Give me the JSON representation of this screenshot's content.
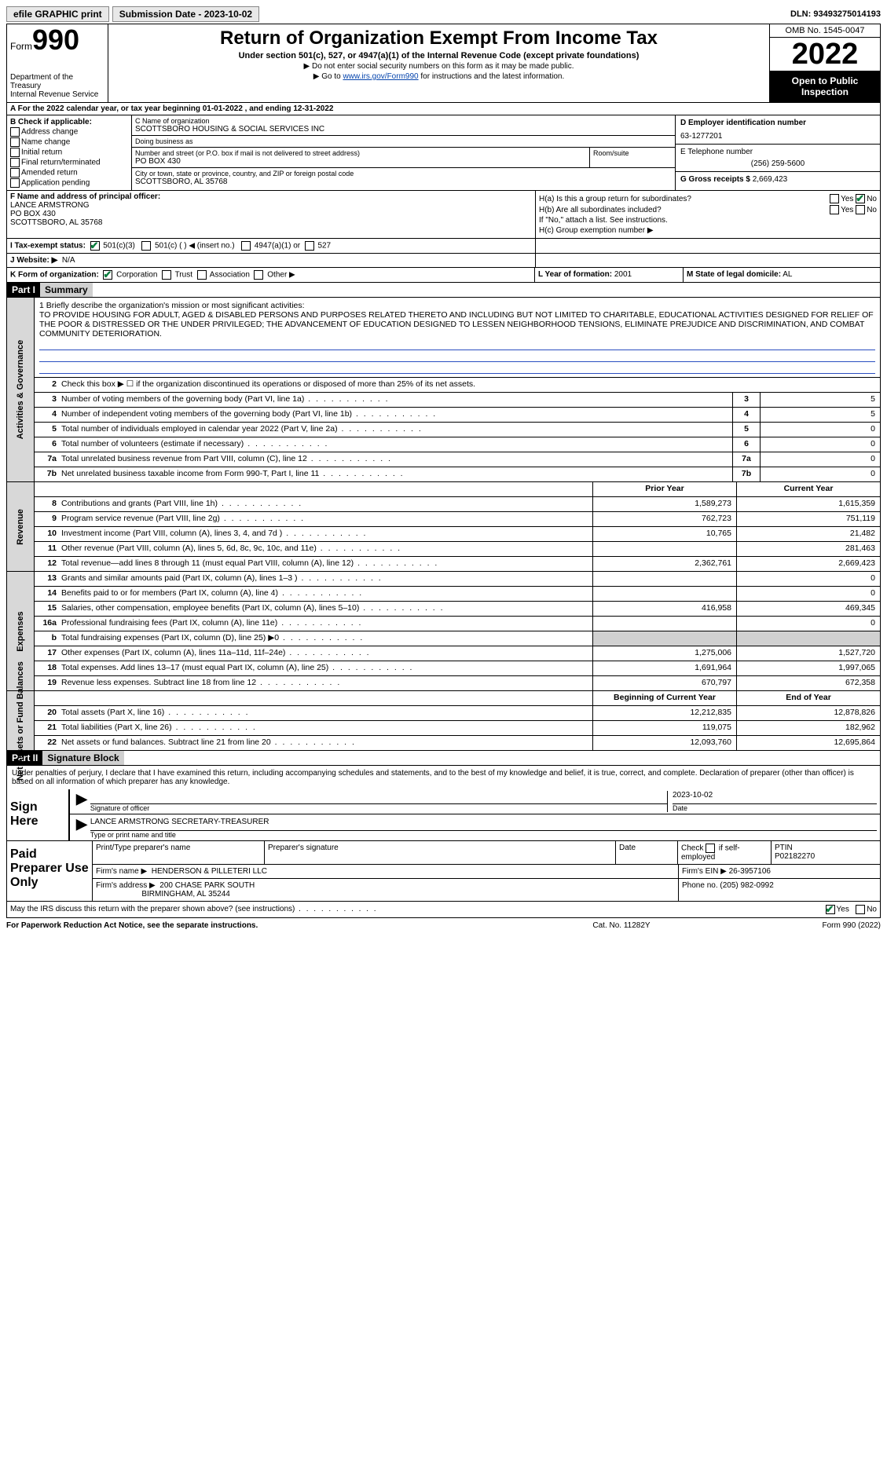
{
  "topbar": {
    "efile": "efile GRAPHIC print",
    "submission": "Submission Date - 2023-10-02",
    "dln": "DLN: 93493275014193"
  },
  "header": {
    "form_word": "Form",
    "form_num": "990",
    "dept": "Department of the Treasury",
    "irs": "Internal Revenue Service",
    "title": "Return of Organization Exempt From Income Tax",
    "sub": "Under section 501(c), 527, or 4947(a)(1) of the Internal Revenue Code (except private foundations)",
    "note1": "▶ Do not enter social security numbers on this form as it may be made public.",
    "note2_pre": "▶ Go to ",
    "note2_link": "www.irs.gov/Form990",
    "note2_post": " for instructions and the latest information.",
    "omb": "OMB No. 1545-0047",
    "year": "2022",
    "open": "Open to Public Inspection"
  },
  "rowA": "A For the 2022 calendar year, or tax year beginning 01-01-2022    , and ending 12-31-2022",
  "colB": {
    "hdr": "B Check if applicable:",
    "items": [
      "Address change",
      "Name change",
      "Initial return",
      "Final return/terminated",
      "Amended return",
      "Application pending"
    ]
  },
  "colC": {
    "name_hint": "C Name of organization",
    "name": "SCOTTSBORO HOUSING & SOCIAL SERVICES INC",
    "dba_hint": "Doing business as",
    "dba": "",
    "street_hint": "Number and street (or P.O. box if mail is not delivered to street address)",
    "street": "PO BOX 430",
    "room_hint": "Room/suite",
    "city_hint": "City or town, state or province, country, and ZIP or foreign postal code",
    "city": "SCOTTSBORO, AL  35768"
  },
  "colD": {
    "ein_hint": "D Employer identification number",
    "ein": "63-1277201",
    "phone_hint": "E Telephone number",
    "phone": "(256) 259-5600",
    "gross_hint": "G Gross receipts $",
    "gross": "2,669,423"
  },
  "colF": {
    "hint": "F  Name and address of principal officer:",
    "name": "LANCE ARMSTRONG",
    "addr1": "PO BOX 430",
    "addr2": "SCOTTSBORO, AL  35768"
  },
  "colH": {
    "ha": "H(a)  Is this a group return for subordinates?",
    "hb": "H(b)  Are all subordinates included?",
    "hnote": "If \"No,\" attach a list. See instructions.",
    "hc": "H(c)  Group exemption number ▶",
    "yes": "Yes",
    "no": "No"
  },
  "rowI": {
    "label": "I  Tax-exempt status:",
    "opt1": "501(c)(3)",
    "opt2": "501(c) (  ) ◀ (insert no.)",
    "opt3": "4947(a)(1) or",
    "opt4": "527"
  },
  "rowJ": {
    "label": "J  Website: ▶",
    "val": "N/A"
  },
  "rowK": {
    "label": "K Form of organization:",
    "opts": [
      "Corporation",
      "Trust",
      "Association",
      "Other ▶"
    ]
  },
  "rowL": {
    "label": "L Year of formation:",
    "val": "2001"
  },
  "rowM": {
    "label": "M State of legal domicile:",
    "val": "AL"
  },
  "part1": {
    "hdr": "Part I",
    "title": "Summary"
  },
  "mission": {
    "label": "1  Briefly describe the organization's mission or most significant activities:",
    "text": "TO PROVIDE HOUSING FOR ADULT, AGED & DISABLED PERSONS AND PURPOSES RELATED THERETO AND INCLUDING BUT NOT LIMITED TO CHARITABLE, EDUCATIONAL ACTIVITIES DESIGNED FOR RELIEF OF THE POOR & DISTRESSED OR THE UNDER PRIVILEGED; THE ADVANCEMENT OF EDUCATION DESIGNED TO LESSEN NEIGHBORHOOD TENSIONS, ELIMINATE PREJUDICE AND DISCRIMINATION, AND COMBAT COMMUNITY DETERIORATION."
  },
  "gov": {
    "l2": "Check this box ▶ ☐  if the organization discontinued its operations or disposed of more than 25% of its net assets.",
    "lines": [
      {
        "n": "3",
        "d": "Number of voting members of the governing body (Part VI, line 1a)",
        "box": "3",
        "v": "5"
      },
      {
        "n": "4",
        "d": "Number of independent voting members of the governing body (Part VI, line 1b)",
        "box": "4",
        "v": "5"
      },
      {
        "n": "5",
        "d": "Total number of individuals employed in calendar year 2022 (Part V, line 2a)",
        "box": "5",
        "v": "0"
      },
      {
        "n": "6",
        "d": "Total number of volunteers (estimate if necessary)",
        "box": "6",
        "v": "0"
      },
      {
        "n": "7a",
        "d": "Total unrelated business revenue from Part VIII, column (C), line 12",
        "box": "7a",
        "v": "0"
      },
      {
        "n": "7b",
        "d": "Net unrelated business taxable income from Form 990-T, Part I, line 11",
        "box": "7b",
        "v": "0"
      }
    ]
  },
  "rev": {
    "hdr_prior": "Prior Year",
    "hdr_curr": "Current Year",
    "lines": [
      {
        "n": "8",
        "d": "Contributions and grants (Part VIII, line 1h)",
        "p": "1,589,273",
        "c": "1,615,359"
      },
      {
        "n": "9",
        "d": "Program service revenue (Part VIII, line 2g)",
        "p": "762,723",
        "c": "751,119"
      },
      {
        "n": "10",
        "d": "Investment income (Part VIII, column (A), lines 3, 4, and 7d )",
        "p": "10,765",
        "c": "21,482"
      },
      {
        "n": "11",
        "d": "Other revenue (Part VIII, column (A), lines 5, 6d, 8c, 9c, 10c, and 11e)",
        "p": "",
        "c": "281,463"
      },
      {
        "n": "12",
        "d": "Total revenue—add lines 8 through 11 (must equal Part VIII, column (A), line 12)",
        "p": "2,362,761",
        "c": "2,669,423"
      }
    ]
  },
  "exp": {
    "lines": [
      {
        "n": "13",
        "d": "Grants and similar amounts paid (Part IX, column (A), lines 1–3 )",
        "p": "",
        "c": "0"
      },
      {
        "n": "14",
        "d": "Benefits paid to or for members (Part IX, column (A), line 4)",
        "p": "",
        "c": "0"
      },
      {
        "n": "15",
        "d": "Salaries, other compensation, employee benefits (Part IX, column (A), lines 5–10)",
        "p": "416,958",
        "c": "469,345"
      },
      {
        "n": "16a",
        "d": "Professional fundraising fees (Part IX, column (A), line 11e)",
        "p": "",
        "c": "0"
      },
      {
        "n": "b",
        "d": "Total fundraising expenses (Part IX, column (D), line 25) ▶0",
        "p": "SHADE",
        "c": "SHADE"
      },
      {
        "n": "17",
        "d": "Other expenses (Part IX, column (A), lines 11a–11d, 11f–24e)",
        "p": "1,275,006",
        "c": "1,527,720"
      },
      {
        "n": "18",
        "d": "Total expenses. Add lines 13–17 (must equal Part IX, column (A), line 25)",
        "p": "1,691,964",
        "c": "1,997,065"
      },
      {
        "n": "19",
        "d": "Revenue less expenses. Subtract line 18 from line 12",
        "p": "670,797",
        "c": "672,358"
      }
    ]
  },
  "net": {
    "hdr_beg": "Beginning of Current Year",
    "hdr_end": "End of Year",
    "lines": [
      {
        "n": "20",
        "d": "Total assets (Part X, line 16)",
        "p": "12,212,835",
        "c": "12,878,826"
      },
      {
        "n": "21",
        "d": "Total liabilities (Part X, line 26)",
        "p": "119,075",
        "c": "182,962"
      },
      {
        "n": "22",
        "d": "Net assets or fund balances. Subtract line 21 from line 20",
        "p": "12,093,760",
        "c": "12,695,864"
      }
    ]
  },
  "part2": {
    "hdr": "Part II",
    "title": "Signature Block"
  },
  "sig": {
    "decl": "Under penalties of perjury, I declare that I have examined this return, including accompanying schedules and statements, and to the best of my knowledge and belief, it is true, correct, and complete. Declaration of preparer (other than officer) is based on all information of which preparer has any knowledge.",
    "sign_here": "Sign Here",
    "sig_of_officer": "Signature of officer",
    "date": "2023-10-02",
    "date_lbl": "Date",
    "name_title": "LANCE ARMSTRONG  SECRETARY-TREASURER",
    "name_title_lbl": "Type or print name and title"
  },
  "prep": {
    "label": "Paid Preparer Use Only",
    "h1": "Print/Type preparer's name",
    "h2": "Preparer's signature",
    "h3": "Date",
    "h4_pre": "Check",
    "h4_post": "if self-employed",
    "h5": "PTIN",
    "ptin": "P02182270",
    "firm_name_lbl": "Firm's name    ▶",
    "firm_name": "HENDERSON & PILLETERI LLC",
    "firm_ein_lbl": "Firm's EIN ▶",
    "firm_ein": "26-3957106",
    "firm_addr_lbl": "Firm's address ▶",
    "firm_addr1": "200 CHASE PARK SOUTH",
    "firm_addr2": "BIRMINGHAM, AL  35244",
    "phone_lbl": "Phone no.",
    "phone": "(205) 982-0992"
  },
  "discuss": {
    "q": "May the IRS discuss this return with the preparer shown above? (see instructions)",
    "yes": "Yes",
    "no": "No"
  },
  "footer": {
    "pra": "For Paperwork Reduction Act Notice, see the separate instructions.",
    "cat": "Cat. No. 11282Y",
    "form": "Form 990 (2022)"
  },
  "sides": {
    "gov": "Activities & Governance",
    "rev": "Revenue",
    "exp": "Expenses",
    "net": "Net Assets or Fund Balances"
  }
}
